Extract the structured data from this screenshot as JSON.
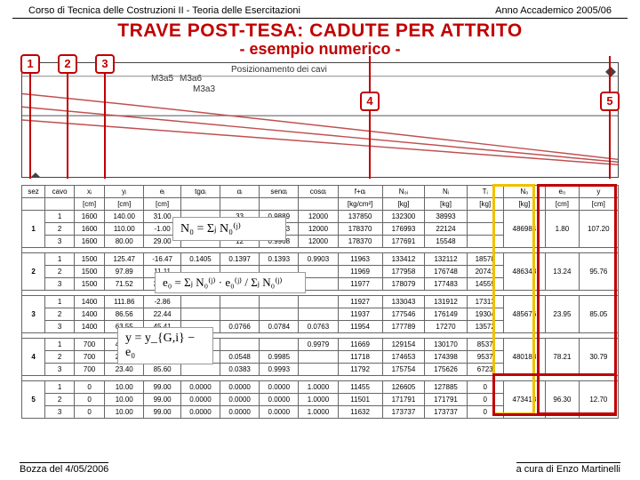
{
  "header": {
    "left": "Corso di Tecnica delle Costruzioni II - Teoria delle Esercitazioni",
    "right": "Anno Accademico 2005/06"
  },
  "title": "TRAVE POST-TESA: CADUTE PER ATTRITO",
  "subtitle": "- esempio numerico -",
  "diagram": {
    "caption": "Posizionamento dei cavi",
    "labels": [
      "1",
      "2",
      "3",
      "4",
      "5"
    ]
  },
  "formulas": {
    "n0": "N₀ = Σⱼ N₀⁽ʲ⁾",
    "e0": "e₀ = Σⱼ N₀⁽ʲ⁾ · e₀⁽ʲ⁾ / Σⱼ N₀⁽ʲ⁾",
    "y": "y = y_{G,i} − e₀"
  },
  "table": {
    "headers": [
      "sez",
      "cavo",
      "xᵢ",
      "yᵢ",
      "eᵢ",
      "tgαᵢ",
      "αᵢ",
      "senαᵢ",
      "cosαᵢ",
      "f+αᵢ",
      "N₀ᵢ",
      "Nᵢ",
      "Tᵢ",
      "N₀",
      "e₀",
      "y"
    ],
    "units": [
      "",
      "",
      "[cm]",
      "[cm]",
      "[cm]",
      "",
      "",
      "",
      "",
      "[kg/cm²]",
      "[kg]",
      "[kg]",
      "[kg]",
      "[kg]",
      "[cm]",
      "[cm]"
    ],
    "groups": [
      {
        "sez": "1",
        "n0": "486984",
        "e0": "1.80",
        "y": "107.20",
        "rows": [
          [
            "1",
            "1600",
            "140.00",
            "31.00",
            "",
            "33",
            "0.9889",
            "12000",
            "137850",
            "132300",
            "38993"
          ],
          [
            "2",
            "1600",
            "110.00",
            "-1.00",
            "",
            "10",
            "0.9923",
            "12000",
            "178370",
            "176993",
            "22124"
          ],
          [
            "3",
            "1600",
            "80.00",
            "29.00",
            "",
            "12",
            "0.9968",
            "12000",
            "178370",
            "177691",
            "15548"
          ]
        ]
      },
      {
        "sez": "2",
        "n0": "486343",
        "e0": "13.24",
        "y": "95.76",
        "rows": [
          [
            "1",
            "1500",
            "125.47",
            "-16.47",
            "0.1405",
            "0.1397",
            "0.1393",
            "0.9903",
            "11963",
            "133412",
            "132112",
            "18578"
          ],
          [
            "2",
            "1500",
            "97.89",
            "11.11",
            "",
            "",
            "",
            "",
            "11969",
            "177958",
            "176748",
            "20741"
          ],
          [
            "3",
            "1500",
            "71.52",
            "37.48",
            "",
            "",
            "",
            "",
            "11977",
            "178079",
            "177483",
            "14559"
          ]
        ]
      },
      {
        "sez": "3",
        "n0": "485676",
        "e0": "23.95",
        "y": "85.05",
        "rows": [
          [
            "1",
            "1400",
            "111.86",
            "-2.86",
            "",
            "",
            "",
            "",
            "11927",
            "133043",
            "131912",
            "17313"
          ],
          [
            "2",
            "1400",
            "86.56",
            "22.44",
            "",
            "",
            "",
            "",
            "11937",
            "177546",
            "176149",
            "19304"
          ],
          [
            "3",
            "1400",
            "63.55",
            "45.41",
            "",
            "0.0766",
            "0.0784",
            "0.0763",
            "11954",
            "177789",
            "17270",
            "13572"
          ]
        ]
      },
      {
        "sez": "4",
        "n0": "480188",
        "e0": "78.21",
        "y": "30.79",
        "rows": [
          [
            "1",
            "700",
            "42.97",
            "66.03",
            "0.0655",
            "",
            "",
            "0.9979",
            "11669",
            "129154",
            "130170",
            "8537"
          ],
          [
            "2",
            "700",
            "29.14",
            "79.86",
            "",
            "0.0548",
            "0.9985",
            "",
            "11718",
            "174653",
            "174398",
            "9537"
          ],
          [
            "3",
            "700",
            "23.40",
            "85.60",
            "",
            "0.0383",
            "0.9993",
            "",
            "11792",
            "175754",
            "175626",
            "6723"
          ]
        ]
      },
      {
        "sez": "5",
        "n0": "473413",
        "e0": "96.30",
        "y": "12.70",
        "rows": [
          [
            "1",
            "0",
            "10.00",
            "99.00",
            "0.0000",
            "0.0000",
            "0.0000",
            "1.0000",
            "11455",
            "126605",
            "127885",
            "0"
          ],
          [
            "2",
            "0",
            "10.00",
            "99.00",
            "0.0000",
            "0.0000",
            "0.0000",
            "1.0000",
            "11501",
            "171791",
            "171791",
            "0"
          ],
          [
            "3",
            "0",
            "10.00",
            "99.00",
            "0.0000",
            "0.0000",
            "0.0000",
            "1.0000",
            "11632",
            "173737",
            "173737",
            "0"
          ]
        ]
      }
    ]
  },
  "footer": {
    "left": "Bozza del 4/05/2006",
    "right": "a cura di Enzo Martinelli"
  }
}
